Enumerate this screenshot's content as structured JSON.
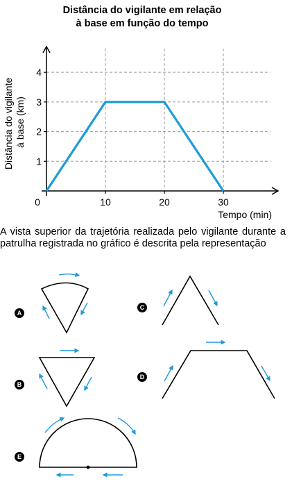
{
  "chart_data": {
    "type": "line",
    "title_line1": "Distância do vigilante em relação",
    "title_line2": "à base em função do tempo",
    "ylabel_line1": "Distância do vigilante",
    "ylabel_line2": "à base (km)",
    "xlabel": "Tempo (min)",
    "x_ticks": [
      0,
      10,
      20,
      30
    ],
    "y_ticks": [
      1,
      2,
      3,
      4
    ],
    "xlim": [
      0,
      38
    ],
    "ylim": [
      0,
      4.8
    ],
    "grid": true,
    "series": [
      {
        "x": [
          0,
          10,
          20,
          30
        ],
        "y": [
          0,
          3,
          3,
          0
        ],
        "color": "#1e9bd7"
      }
    ]
  },
  "question": {
    "text": "A vista superior da trajetória realizada pelo vigilante durante a patrulha registrada no gráfico é descrita pela representação"
  },
  "options": [
    {
      "letter": "A",
      "shape": "circular-sector"
    },
    {
      "letter": "B",
      "shape": "inverted-triangle"
    },
    {
      "letter": "C",
      "shape": "inverted-v"
    },
    {
      "letter": "D",
      "shape": "trapezoid-path"
    },
    {
      "letter": "E",
      "shape": "semicircle"
    }
  ],
  "colors": {
    "line": "#1e9bd7",
    "arrow": "#1e9bd7",
    "grid": "#9a9a9a"
  }
}
